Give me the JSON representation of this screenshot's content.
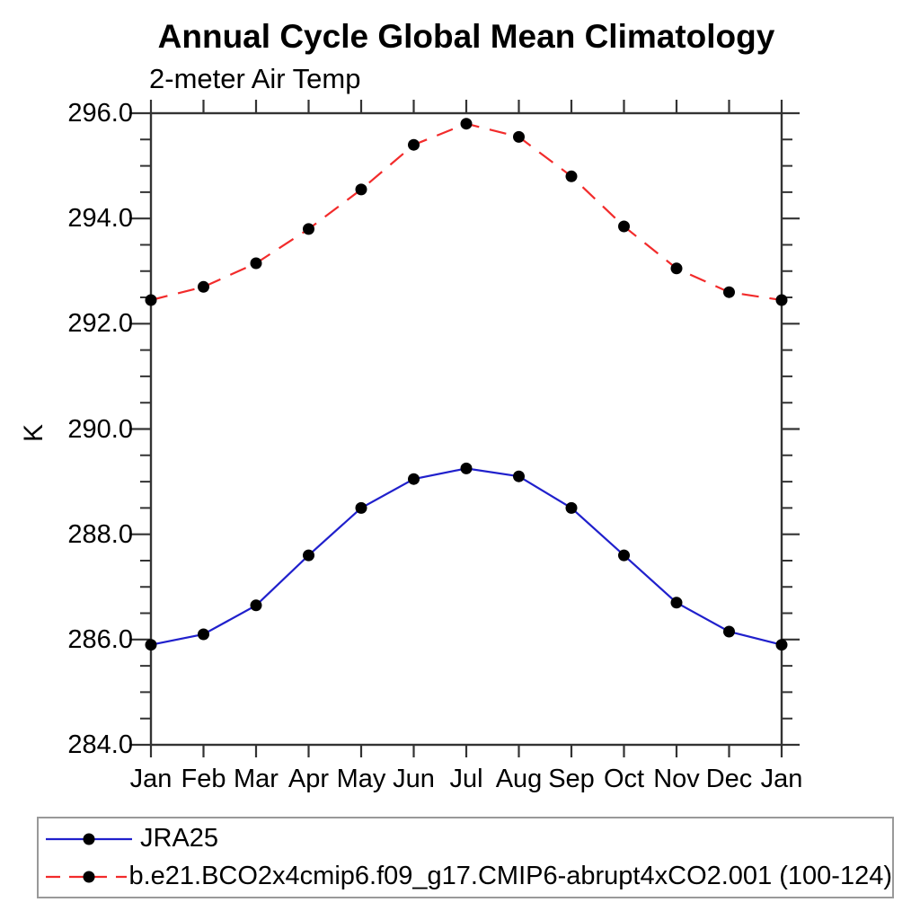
{
  "chart": {
    "title": "Annual Cycle Global Mean Climatology",
    "subtitle": "2-meter Air Temp",
    "ylabel": "K"
  },
  "chart_data": {
    "type": "line",
    "title": "Annual Cycle Global Mean Climatology",
    "subtitle": "2-meter Air Temp",
    "xlabel": "",
    "ylabel": "K",
    "x_categories": [
      "Jan",
      "Feb",
      "Mar",
      "Apr",
      "May",
      "Jun",
      "Jul",
      "Aug",
      "Sep",
      "Oct",
      "Nov",
      "Dec",
      "Jan"
    ],
    "ylim": [
      284.0,
      296.0
    ],
    "y_major_step": 2.0,
    "y_minor_step": 0.5,
    "y_tick_labels": [
      "284.0",
      "286.0",
      "288.0",
      "290.0",
      "292.0",
      "294.0",
      "296.0"
    ],
    "grid": false,
    "legend_position": "bottom-left",
    "axis_color": "#333333",
    "marker": "filled-circle",
    "marker_color": "#000000",
    "series": [
      {
        "name": "JRA25",
        "color": "#2020cc",
        "line_style": "solid",
        "values": [
          285.9,
          286.1,
          286.65,
          287.6,
          288.5,
          289.05,
          289.25,
          289.1,
          288.5,
          287.6,
          286.7,
          286.15,
          285.9
        ]
      },
      {
        "name": "b.e21.BCO2x4cmip6.f09_g17.CMIP6-abrupt4xCO2.001 (100-124)",
        "color": "#f22b2b",
        "line_style": "dashed",
        "values": [
          292.45,
          292.7,
          293.15,
          293.8,
          294.55,
          295.4,
          295.8,
          295.55,
          294.8,
          293.85,
          293.05,
          292.6,
          292.45
        ]
      }
    ]
  },
  "legend": {
    "entries": [
      {
        "label": "JRA25",
        "color": "#2020cc",
        "line_style": "solid",
        "marker_color": "#000000"
      },
      {
        "label": "b.e21.BCO2x4cmip6.f09_g17.CMIP6-abrupt4xCO2.001 (100-124)",
        "color": "#f22b2b",
        "line_style": "dashed",
        "marker_color": "#000000"
      }
    ]
  }
}
